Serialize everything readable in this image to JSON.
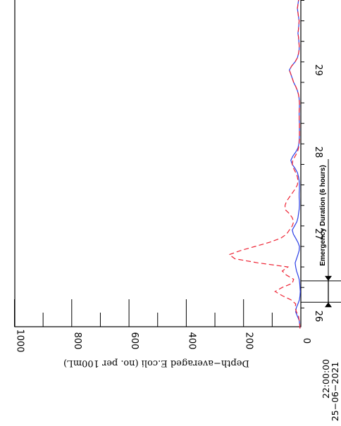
{
  "chart_data": {
    "type": "line",
    "orientation": "rotated-90-clockwise",
    "ylabel": "Depth−averaged E.coli (no. per 100mL)",
    "y_ticks": [
      0,
      200,
      400,
      600,
      800,
      1000
    ],
    "y_minor_ticks": [
      100,
      300,
      500,
      700,
      900
    ],
    "ylim": [
      0,
      1000
    ],
    "x_ticks": [
      26,
      27,
      28,
      29
    ],
    "xlim": [
      25.85,
      30.1
    ],
    "x_start_label": [
      "22:00:00",
      "25−06−2021"
    ],
    "series": [
      {
        "color": "#2a3ee6",
        "style": "solid",
        "x": [
          25.85,
          25.9,
          25.95,
          26.0,
          26.05,
          26.1,
          26.15,
          26.2,
          26.25,
          26.3,
          26.35,
          26.4,
          26.45,
          26.5,
          26.55,
          26.6,
          26.65,
          26.7,
          26.75,
          26.8,
          26.85,
          26.9,
          26.95,
          27.0,
          27.05,
          27.1,
          27.15,
          27.2,
          27.25,
          27.3,
          27.35,
          27.4,
          27.45,
          27.5,
          27.55,
          27.6,
          27.65,
          27.7,
          27.75,
          27.8,
          27.85,
          27.9,
          27.95,
          28.0,
          28.05,
          28.1,
          28.15,
          28.2,
          28.25,
          28.3,
          28.35,
          28.4,
          28.45,
          28.5,
          28.55,
          28.6,
          28.65,
          28.7,
          28.75,
          28.8,
          28.85,
          28.9,
          28.95,
          29.0,
          29.05,
          29.1,
          29.15,
          29.2,
          29.25,
          29.3,
          29.35,
          29.4,
          29.45,
          29.5,
          29.55,
          29.6,
          29.65,
          29.7,
          29.75,
          29.8,
          29.85,
          29.9,
          29.95,
          30.0,
          30.05,
          30.1
        ],
        "values": [
          3,
          4,
          6,
          12,
          18,
          16,
          10,
          5,
          3,
          2,
          3,
          4,
          6,
          10,
          15,
          18,
          20,
          15,
          10,
          6,
          5,
          10,
          18,
          26,
          30,
          22,
          14,
          10,
          8,
          6,
          5,
          5,
          6,
          6,
          5,
          5,
          6,
          8,
          12,
          20,
          30,
          35,
          28,
          18,
          10,
          7,
          6,
          5,
          5,
          5,
          5,
          6,
          6,
          6,
          5,
          5,
          6,
          8,
          12,
          18,
          25,
          30,
          35,
          40,
          32,
          20,
          12,
          8,
          6,
          6,
          7,
          8,
          10,
          8,
          7,
          6,
          8,
          10,
          12,
          10,
          8,
          8,
          9,
          8,
          7,
          6
        ]
      },
      {
        "color": "#ee2233",
        "style": "dashed",
        "x": [
          25.85,
          25.9,
          25.95,
          26.0,
          26.05,
          26.1,
          26.15,
          26.2,
          26.25,
          26.3,
          26.35,
          26.4,
          26.45,
          26.5,
          26.55,
          26.6,
          26.65,
          26.7,
          26.75,
          26.8,
          26.85,
          26.9,
          26.95,
          27.0,
          27.05,
          27.1,
          27.15,
          27.2,
          27.25,
          27.3,
          27.35,
          27.4,
          27.45,
          27.5,
          27.55,
          27.6,
          27.65,
          27.7,
          27.75,
          27.8,
          27.85,
          27.9,
          27.95,
          28.0,
          28.05,
          28.1,
          28.15,
          28.2,
          28.25,
          28.3,
          28.35,
          28.4,
          28.45,
          28.5,
          28.55,
          28.6,
          28.65,
          28.7,
          28.75,
          28.8,
          28.85,
          28.9,
          28.95,
          29.0,
          29.05,
          29.1,
          29.15,
          29.2,
          29.25,
          29.3,
          29.35,
          29.4,
          29.45,
          29.5,
          29.55,
          29.6,
          29.65,
          29.7,
          29.75,
          29.8,
          29.85,
          29.9,
          29.95,
          30.0,
          30.05,
          30.1
        ],
        "values": [
          3,
          4,
          6,
          8,
          15,
          20,
          18,
          35,
          65,
          90,
          65,
          30,
          25,
          50,
          65,
          45,
          150,
          230,
          250,
          210,
          160,
          110,
          70,
          50,
          40,
          30,
          25,
          30,
          40,
          55,
          55,
          50,
          40,
          30,
          20,
          12,
          10,
          12,
          18,
          25,
          30,
          28,
          20,
          12,
          8,
          6,
          5,
          5,
          5,
          5,
          5,
          6,
          6,
          6,
          5,
          5,
          6,
          8,
          12,
          18,
          25,
          30,
          35,
          40,
          32,
          20,
          12,
          8,
          6,
          6,
          7,
          8,
          10,
          8,
          7,
          6,
          8,
          10,
          12,
          10,
          8,
          8,
          9,
          8,
          7,
          6
        ]
      }
    ],
    "annotation": {
      "text": "Emergency Duration  (6 hours)",
      "x_start": 26.17,
      "x_end": 26.43
    }
  }
}
